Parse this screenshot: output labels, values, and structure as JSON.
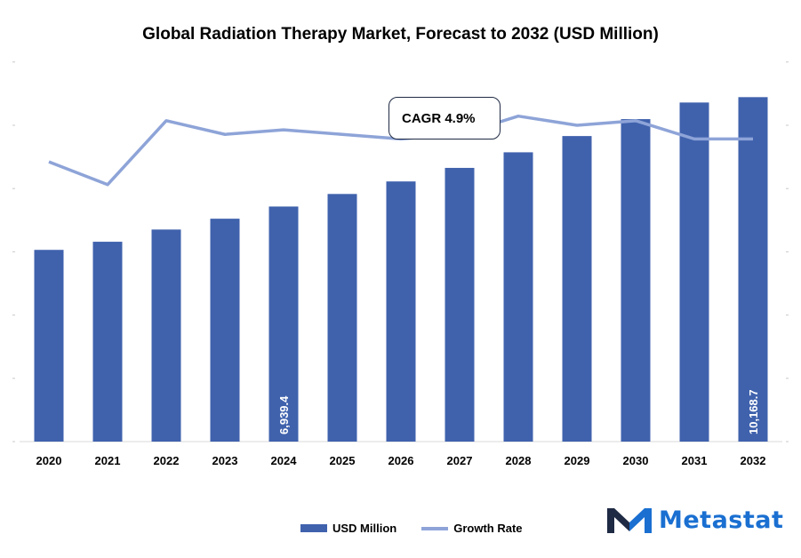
{
  "chart_data": {
    "type": "bar",
    "title": "Global Radiation Therapy Market, Forecast to 2032 (USD Million)",
    "categories": [
      "2020",
      "2021",
      "2022",
      "2023",
      "2024",
      "2025",
      "2026",
      "2027",
      "2028",
      "2029",
      "2030",
      "2031",
      "2032"
    ],
    "series": [
      {
        "name": "USD Million",
        "type": "bar",
        "color": "#4062ad",
        "values": [
          5660,
          5900,
          6260,
          6580,
          6939.4,
          7310,
          7680,
          8080,
          8540,
          9020,
          9520,
          10010,
          10168.7
        ]
      },
      {
        "name": "Growth Rate",
        "type": "line",
        "color": "#8ea4d8",
        "values": [
          4.1,
          3.6,
          5.0,
          4.7,
          4.8,
          4.7,
          4.6,
          4.7,
          5.1,
          4.9,
          5.0,
          4.6,
          4.6
        ]
      }
    ],
    "data_labels": [
      {
        "category": "2024",
        "text": "6,939.4"
      },
      {
        "category": "2032",
        "text": "10,168.7"
      }
    ],
    "annotation": "CAGR 4.9%",
    "legend_position": "bottom",
    "grid": false
  },
  "brand": {
    "name": "Metastat"
  }
}
